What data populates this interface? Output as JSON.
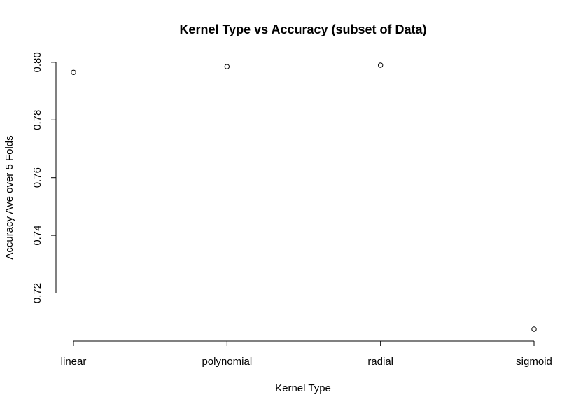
{
  "chart_data": {
    "type": "scatter",
    "title": "Kernel Type vs Accuracy (subset of Data)",
    "xlabel": "Kernel Type",
    "ylabel": "Accuracy Ave over 5 Folds",
    "categories": [
      "linear",
      "polynomial",
      "radial",
      "sigmoid"
    ],
    "values": [
      0.7965,
      0.7985,
      0.799,
      0.7075
    ],
    "ylim": [
      0.7075,
      0.799
    ],
    "yticks": [
      "0.72",
      "0.74",
      "0.76",
      "0.78",
      "0.80"
    ],
    "grid": false,
    "legend": "none",
    "marker": "open-circle"
  }
}
